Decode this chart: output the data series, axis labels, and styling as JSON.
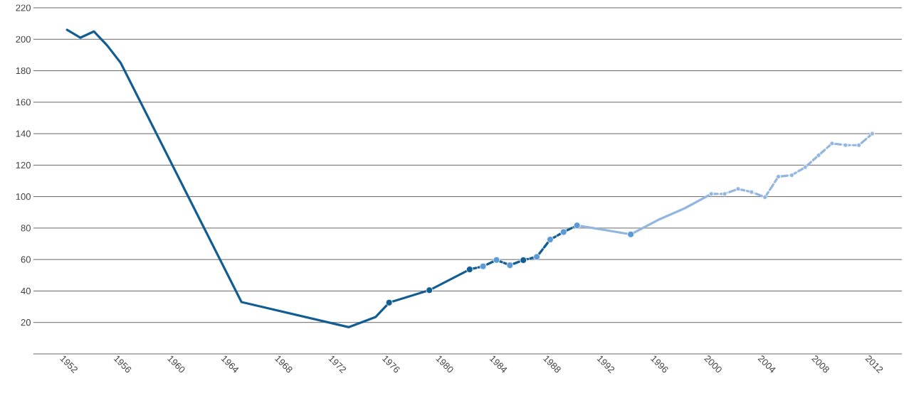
{
  "chart_data": {
    "type": "line",
    "grid": "y",
    "xlim": [
      1949.5,
      2014.2
    ],
    "xticks": [
      1952,
      1956,
      1960,
      1964,
      1968,
      1972,
      1976,
      1980,
      1984,
      1988,
      1992,
      1996,
      2000,
      2004,
      2008,
      2012
    ],
    "ylim": [
      0,
      220
    ],
    "yticks": [
      {
        "value": 0,
        "label": null
      },
      20,
      40,
      60,
      80,
      100,
      120,
      140,
      160,
      180,
      200,
      220
    ],
    "series": [
      {
        "color": "#125d92",
        "line_style": "solid",
        "x": [
          1952,
          1953,
          1954,
          1955,
          1956,
          1965,
          1973,
          1975,
          1976,
          1979,
          1982
        ],
        "values": [
          206,
          201,
          205,
          196,
          185,
          33,
          17,
          23.5,
          32.6,
          40.5,
          53.7
        ]
      },
      {
        "color": "#92b6e0",
        "line_style": "solid",
        "x": [
          1982,
          1983,
          1984,
          1985,
          1986,
          1987,
          1988,
          1989,
          1990
        ],
        "values": [
          53.7,
          55.7,
          59.7,
          56.4,
          59.6,
          61.7,
          72.7,
          77.5,
          81.7
        ]
      },
      {
        "color": "#125d92",
        "line_style": "dashed",
        "x": [
          1982,
          1983,
          1984,
          1985,
          1986,
          1987,
          1988,
          1989,
          1990
        ],
        "values": [
          53.7,
          55.7,
          59.7,
          56.4,
          59.6,
          61.7,
          72.7,
          77.5,
          81.7
        ]
      },
      {
        "color": "#92b6e0",
        "line_style": "solid",
        "x": [
          1990,
          1994,
          1996,
          1998,
          2000
        ],
        "values": [
          81.7,
          76,
          85,
          92.5,
          101.7
        ]
      },
      {
        "color": "#92b6e0",
        "line_style": "dashed",
        "marker": "circle",
        "x": [
          2000,
          2001,
          2002,
          2003,
          2004,
          2005,
          2006,
          2007,
          2008,
          2009,
          2010,
          2011,
          2012
        ],
        "values": [
          101.7,
          101.7,
          104.9,
          102.9,
          99.6,
          112.7,
          113.6,
          118.7,
          126.3,
          133.8,
          132.7,
          132.7,
          140
        ]
      },
      {
        "type": "scatter",
        "color": "#5b9bd5",
        "marker": "circle",
        "x": [
          1983,
          1984,
          1985,
          1987,
          1988,
          1989,
          1990,
          1994
        ],
        "values": [
          55.7,
          59.7,
          56.4,
          61.7,
          72.7,
          77.5,
          81.7,
          76
        ]
      },
      {
        "type": "scatter",
        "color": "#125d92",
        "marker": "circle",
        "x": [
          1976,
          1979,
          1982,
          1986
        ],
        "values": [
          32.6,
          40.5,
          53.7,
          59.6
        ]
      }
    ]
  }
}
